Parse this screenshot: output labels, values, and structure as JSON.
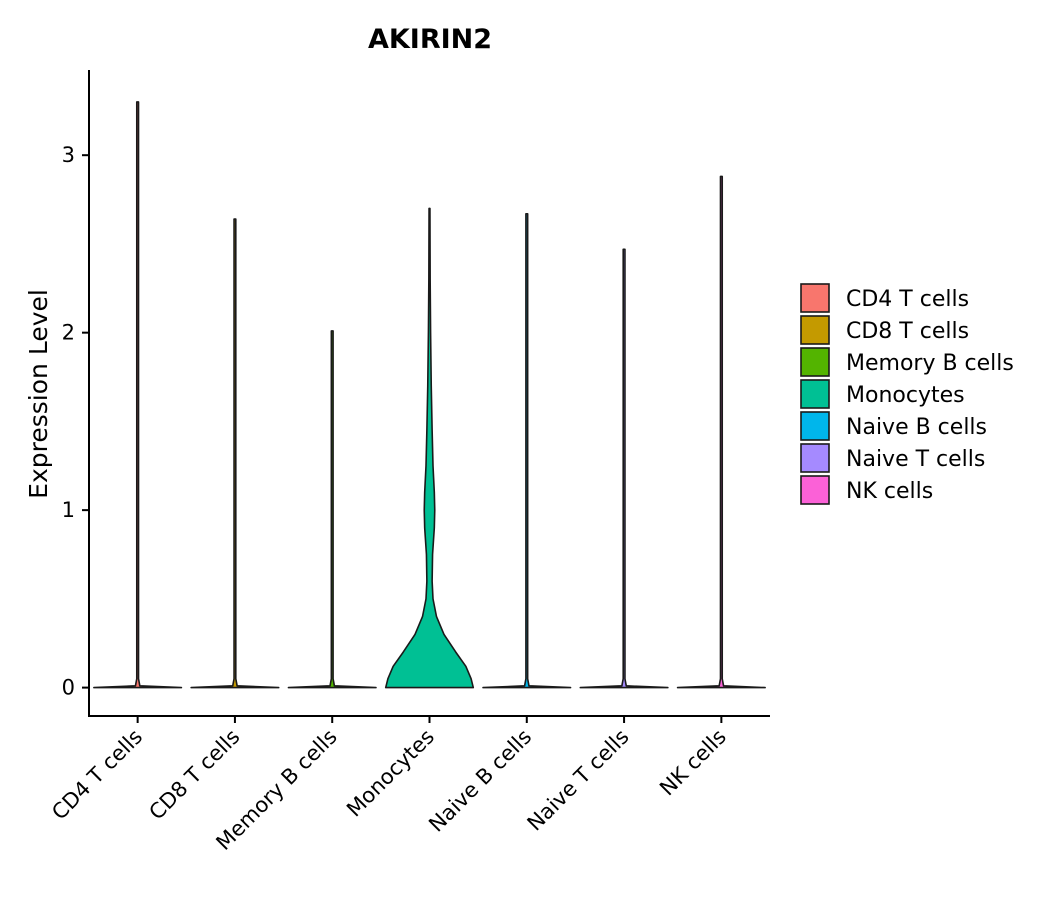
{
  "chart_data": {
    "type": "violin",
    "title": "AKIRIN2",
    "xlabel": "",
    "ylabel": "Expression Level",
    "ylim": [
      -0.16,
      3.48
    ],
    "yticks": [
      0,
      1,
      2,
      3
    ],
    "grid": false,
    "legend_position": "right",
    "categories": [
      "CD4 T cells",
      "CD8 T cells",
      "Memory B cells",
      "Monocytes",
      "Naive B cells",
      "Naive T cells",
      "NK cells"
    ],
    "colors": [
      "#F8766D",
      "#C49A00",
      "#53B400",
      "#00C094",
      "#00B6EB",
      "#A58AFF",
      "#FB61D7"
    ],
    "max_values": [
      3.3,
      2.64,
      2.01,
      2.7,
      2.67,
      2.47,
      2.88
    ],
    "density_profiles": [
      [
        [
          0,
          1.0
        ],
        [
          0.01,
          0.05
        ],
        [
          0.05,
          0.02
        ],
        [
          3.3,
          0.02
        ]
      ],
      [
        [
          0,
          1.0
        ],
        [
          0.01,
          0.05
        ],
        [
          0.05,
          0.02
        ],
        [
          2.64,
          0.02
        ]
      ],
      [
        [
          0,
          1.0
        ],
        [
          0.01,
          0.05
        ],
        [
          0.05,
          0.02
        ],
        [
          2.01,
          0.02
        ]
      ],
      [
        [
          0,
          1.0
        ],
        [
          0.05,
          0.95
        ],
        [
          0.12,
          0.83
        ],
        [
          0.2,
          0.6
        ],
        [
          0.3,
          0.33
        ],
        [
          0.4,
          0.16
        ],
        [
          0.5,
          0.08
        ],
        [
          0.6,
          0.06
        ],
        [
          0.75,
          0.07
        ],
        [
          0.9,
          0.11
        ],
        [
          1.0,
          0.12
        ],
        [
          1.1,
          0.11
        ],
        [
          1.25,
          0.08
        ],
        [
          1.45,
          0.06
        ],
        [
          1.7,
          0.04
        ],
        [
          2.0,
          0.025
        ],
        [
          2.3,
          0.015
        ],
        [
          2.7,
          0.01
        ]
      ],
      [
        [
          0,
          1.0
        ],
        [
          0.01,
          0.05
        ],
        [
          0.05,
          0.02
        ],
        [
          2.67,
          0.02
        ]
      ],
      [
        [
          0,
          1.0
        ],
        [
          0.01,
          0.05
        ],
        [
          0.05,
          0.02
        ],
        [
          2.47,
          0.02
        ]
      ],
      [
        [
          0,
          1.0
        ],
        [
          0.01,
          0.05
        ],
        [
          0.05,
          0.02
        ],
        [
          2.88,
          0.02
        ]
      ]
    ]
  }
}
